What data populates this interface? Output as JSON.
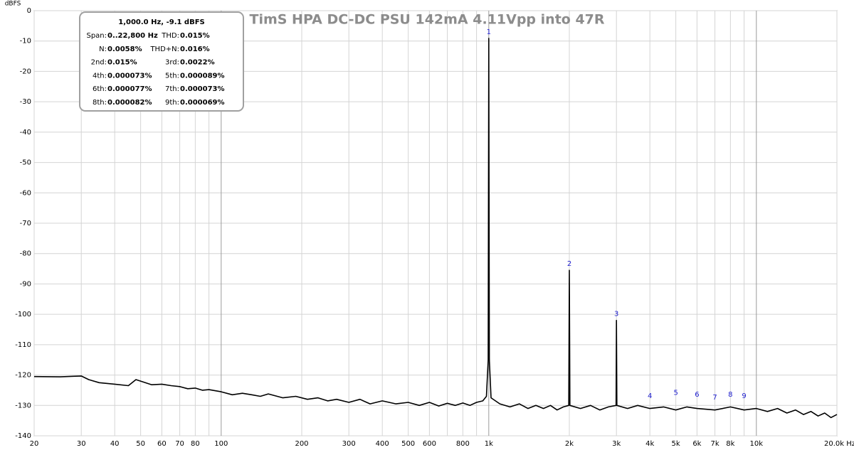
{
  "chart_data": {
    "type": "line",
    "title": "TimS HPA DC-DC PSU 142mA 4.11Vpp into 47R",
    "y_label": "dBFS",
    "log_x": true,
    "grid": true,
    "xlim": [
      20,
      20000
    ],
    "ylim": [
      -140,
      0
    ],
    "yticks": [
      0,
      -10,
      -20,
      -30,
      -40,
      -50,
      -60,
      -70,
      -80,
      -90,
      -100,
      -110,
      -120,
      -130,
      -140
    ],
    "xticks": [
      20,
      30,
      40,
      50,
      60,
      70,
      80,
      {
        "value": 90,
        "label": null
      },
      100,
      200,
      300,
      400,
      500,
      600,
      {
        "value": 700,
        "label": null
      },
      800,
      {
        "value": 900,
        "label": null
      },
      {
        "value": 1000,
        "label": "1k"
      },
      {
        "value": 2000,
        "label": "2k"
      },
      {
        "value": 3000,
        "label": "3k"
      },
      {
        "value": 4000,
        "label": "4k"
      },
      {
        "value": 5000,
        "label": "5k"
      },
      {
        "value": 6000,
        "label": "6k"
      },
      {
        "value": 7000,
        "label": "7k"
      },
      {
        "value": 8000,
        "label": "8k"
      },
      {
        "value": 9000,
        "label": null
      },
      {
        "value": 10000,
        "label": "10k"
      },
      {
        "value": 20000,
        "label": "20.0k Hz"
      }
    ],
    "x": [
      20,
      25,
      28,
      30,
      32,
      35,
      40,
      45,
      48,
      50,
      55,
      60,
      65,
      70,
      75,
      80,
      85,
      90,
      100,
      110,
      120,
      130,
      140,
      150,
      170,
      190,
      210,
      230,
      250,
      270,
      300,
      330,
      360,
      400,
      450,
      500,
      550,
      600,
      650,
      700,
      750,
      800,
      850,
      900,
      950,
      980,
      995,
      1000,
      1005,
      1020,
      1100,
      1200,
      1300,
      1400,
      1500,
      1600,
      1700,
      1800,
      1900,
      1990,
      2000,
      2010,
      2200,
      2400,
      2600,
      2800,
      2990,
      3000,
      3010,
      3300,
      3600,
      4000,
      4500,
      5000,
      5500,
      6000,
      7000,
      8000,
      9000,
      10000,
      11000,
      12000,
      13000,
      14000,
      15000,
      16000,
      17000,
      18000,
      19000,
      20000
    ],
    "series": [
      {
        "color": "#000000",
        "values": [
          -120.5,
          -120.6,
          -120.4,
          -120.3,
          -121.5,
          -122.5,
          -123,
          -123.5,
          -121.5,
          -122,
          -123.2,
          -123,
          -123.5,
          -123.8,
          -124.5,
          -124.3,
          -125,
          -124.8,
          -125.5,
          -126.5,
          -126,
          -126.5,
          -127,
          -126.2,
          -127.5,
          -127,
          -128,
          -127.5,
          -128.5,
          -128,
          -129,
          -128,
          -129.5,
          -128.5,
          -129.5,
          -129,
          -130,
          -129,
          -130.2,
          -129.3,
          -130,
          -129.2,
          -130,
          -129,
          -128.5,
          -127,
          -115,
          -9.1,
          -115,
          -127.5,
          -129.5,
          -130.5,
          -129.5,
          -131,
          -130,
          -131,
          -130,
          -131.5,
          -130.5,
          -130,
          -85.5,
          -130,
          -131,
          -130,
          -131.5,
          -130.5,
          -130,
          -102,
          -130,
          -131,
          -130,
          -131,
          -130.5,
          -131.5,
          -130.5,
          -131,
          -131.5,
          -130.5,
          -131.5,
          -131,
          -132,
          -131,
          -132.5,
          -131.5,
          -133,
          -132,
          -133.5,
          -132.5,
          -134,
          -133
        ]
      }
    ],
    "markers": {
      "labels": [
        "1",
        "2",
        "3",
        "4",
        "5",
        "6",
        "7",
        "8",
        "9"
      ],
      "x": [
        1000,
        2000,
        3000,
        4000,
        5000,
        6000,
        7000,
        8000,
        9000
      ],
      "values": [
        -9.1,
        -85.5,
        -102,
        -129,
        -128,
        -128.5,
        -129.5,
        -128.5,
        -129
      ]
    },
    "info_box": {
      "header": "1,000.0 Hz, -9.1 dBFS",
      "rows": [
        [
          "Span:",
          "0..22,800 Hz",
          "THD:",
          "0.015%"
        ],
        [
          "N:",
          "0.0058%",
          "THD+N:",
          "0.016%"
        ],
        [
          "2nd:",
          "0.015%",
          "3rd:",
          "0.0022%"
        ],
        [
          "4th:",
          "0.000073%",
          "5th:",
          "0.000089%"
        ],
        [
          "6th:",
          "0.000077%",
          "7th:",
          "0.000073%"
        ],
        [
          "8th:",
          "0.000082%",
          "9th:",
          "0.000069%"
        ]
      ]
    }
  }
}
